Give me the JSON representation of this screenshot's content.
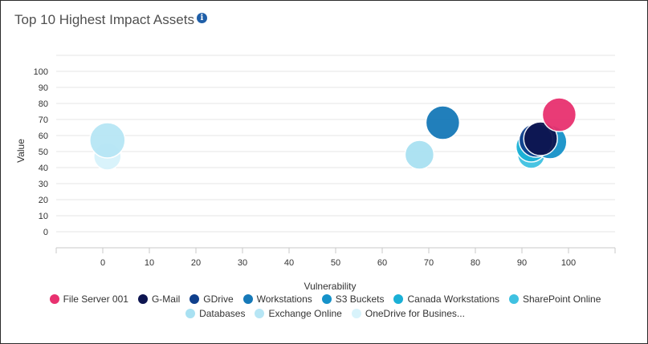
{
  "header": {
    "title": "Top 10 Highest Impact Assets",
    "info_icon": "info-icon",
    "info_glyph": "i"
  },
  "colors": {
    "grid": "#e6e6e6",
    "axis_text": "#333333"
  },
  "chart_data": {
    "type": "scatter",
    "title": "Top 10 Highest Impact Assets",
    "xlabel": "Vulnerability",
    "ylabel": "Value",
    "xlim": [
      -10,
      110
    ],
    "ylim": [
      -10,
      110
    ],
    "x_ticks": [
      0,
      10,
      20,
      30,
      40,
      50,
      60,
      70,
      80,
      90,
      100
    ],
    "y_ticks": [
      0,
      10,
      20,
      30,
      40,
      50,
      60,
      70,
      80,
      90,
      100
    ],
    "grid": true,
    "legend_placement": "bottom",
    "series": [
      {
        "name": "File Server 001",
        "color": "#e8316f",
        "x": 98,
        "y": 73
      },
      {
        "name": "G-Mail",
        "color": "#0d1550",
        "x": 94,
        "y": 58
      },
      {
        "name": "GDrive",
        "color": "#0f3f8c",
        "x": 93,
        "y": 57
      },
      {
        "name": "Workstations",
        "color": "#1679b8",
        "x": 73,
        "y": 68
      },
      {
        "name": "S3 Buckets",
        "color": "#1692c9",
        "x": 96,
        "y": 56
      },
      {
        "name": "Canada Workstations",
        "color": "#1ab0d6",
        "x": 92,
        "y": 53
      },
      {
        "name": "SharePoint Online",
        "color": "#3fc1e1",
        "x": 92,
        "y": 48
      },
      {
        "name": "Databases",
        "color": "#a9e1f2",
        "x": 68,
        "y": 48
      },
      {
        "name": "Exchange Online",
        "color": "#b7e6f5",
        "x": 1,
        "y": 57
      },
      {
        "name": "OneDrive for Busines...",
        "color": "#d8f3fb",
        "x": 1,
        "y": 47
      }
    ],
    "bubble_size": [
      21,
      21,
      21,
      21,
      21,
      19,
      17,
      18,
      22,
      17
    ]
  }
}
